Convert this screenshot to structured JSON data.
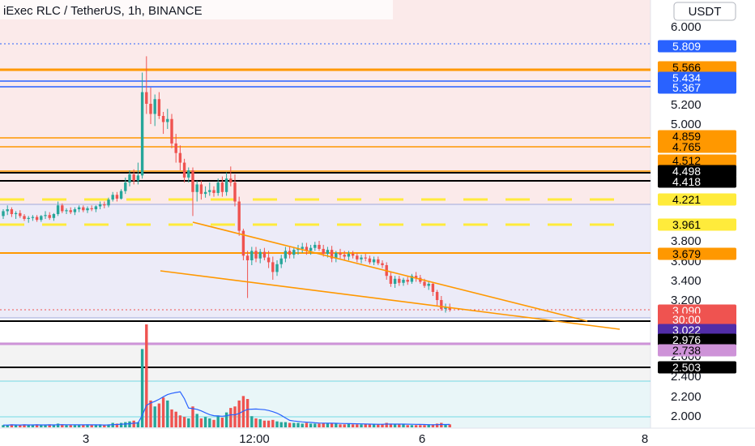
{
  "title": "iExec RLC / TetherUS, 1h, BINANCE",
  "currency": "USDT",
  "colors": {
    "up": "#26a69a",
    "down": "#ef5350",
    "orange": "#ff9800",
    "blue": "#2962ff",
    "black": "#000000",
    "yellow": "#ffeb3b",
    "purple": "#9c27b0",
    "violet": "#ce93d8",
    "volume_ma": "#2962ff"
  },
  "chart_data": {
    "type": "candlestick",
    "title": "iExec RLC / TetherUS, 1h, BINANCE",
    "y_ticks": [
      "6.000",
      "5.200",
      "5.000",
      "3.800",
      "3.600",
      "3.400",
      "3.200",
      "2.600",
      "2.400",
      "2.200",
      "2.000"
    ],
    "x_ticks": [
      "3",
      "12:00",
      "6",
      "8"
    ],
    "levels": [
      {
        "label": "5.809",
        "color": "#2962ff",
        "text_color": "#ffffff"
      },
      {
        "label": "5.566",
        "color": "#ff9800",
        "text_color": "#000000"
      },
      {
        "label": "5.434",
        "color": "#2962ff",
        "text_color": "#ffffff"
      },
      {
        "label": "5.367",
        "color": "#2962ff",
        "text_color": "#ffffff"
      },
      {
        "label": "4.859",
        "color": "#ff9800",
        "text_color": "#000000"
      },
      {
        "label": "4.765",
        "color": "#ff9800",
        "text_color": "#000000"
      },
      {
        "label": "4.512",
        "color": "#ff9800",
        "text_color": "#000000"
      },
      {
        "label": "4.498",
        "color": "#000000",
        "text_color": "#ffffff"
      },
      {
        "label": "4.418",
        "color": "#000000",
        "text_color": "#ffffff"
      },
      {
        "label": "4.221",
        "color": "#ffeb3b",
        "text_color": "#000000"
      },
      {
        "label": "3.961",
        "color": "#ffeb3b",
        "text_color": "#000000"
      },
      {
        "label": "3.679",
        "color": "#ff9800",
        "text_color": "#000000"
      },
      {
        "label": "3.090",
        "color": "#ef5350",
        "text_color": "#ffffff"
      },
      {
        "label": "30:00",
        "color": "#ef5350",
        "text_color": "#ffffff"
      },
      {
        "label": "3.022",
        "color": "#512da8",
        "text_color": "#ffffff"
      },
      {
        "label": "2.976",
        "color": "#000000",
        "text_color": "#ffffff"
      },
      {
        "label": "2.738",
        "color": "#ce93d8",
        "text_color": "#000000"
      },
      {
        "label": "2.503",
        "color": "#000000",
        "text_color": "#ffffff"
      }
    ],
    "candles": [
      [
        4.05,
        4.12,
        4.02,
        4.1
      ],
      [
        4.1,
        4.16,
        4.06,
        4.12
      ],
      [
        4.12,
        4.14,
        4.04,
        4.07
      ],
      [
        4.07,
        4.1,
        4.02,
        4.08
      ],
      [
        4.08,
        4.11,
        4.03,
        4.05
      ],
      [
        4.05,
        4.07,
        4.0,
        4.02
      ],
      [
        4.02,
        4.05,
        3.98,
        4.03
      ],
      [
        4.03,
        4.06,
        4.0,
        4.04
      ],
      [
        4.04,
        4.06,
        3.99,
        4.01
      ],
      [
        4.01,
        4.06,
        3.99,
        4.05
      ],
      [
        4.05,
        4.1,
        4.02,
        4.06
      ],
      [
        4.06,
        4.09,
        4.01,
        4.03
      ],
      [
        4.03,
        4.08,
        4.0,
        4.07
      ],
      [
        4.07,
        4.2,
        4.05,
        4.16
      ],
      [
        4.16,
        4.18,
        4.08,
        4.1
      ],
      [
        4.1,
        4.13,
        4.07,
        4.11
      ],
      [
        4.11,
        4.14,
        4.07,
        4.09
      ],
      [
        4.09,
        4.14,
        4.06,
        4.12
      ],
      [
        4.12,
        4.16,
        4.09,
        4.14
      ],
      [
        4.14,
        4.16,
        4.09,
        4.11
      ],
      [
        4.11,
        4.15,
        4.08,
        4.13
      ],
      [
        4.13,
        4.16,
        4.1,
        4.12
      ],
      [
        4.12,
        4.16,
        4.09,
        4.15
      ],
      [
        4.15,
        4.2,
        4.12,
        4.17
      ],
      [
        4.17,
        4.2,
        4.13,
        4.16
      ],
      [
        4.16,
        4.24,
        4.14,
        4.22
      ],
      [
        4.22,
        4.3,
        4.2,
        4.27
      ],
      [
        4.27,
        4.3,
        4.2,
        4.23
      ],
      [
        4.23,
        4.33,
        4.22,
        4.31
      ],
      [
        4.31,
        4.45,
        4.28,
        4.4
      ],
      [
        4.4,
        4.52,
        4.36,
        4.48
      ],
      [
        4.48,
        4.53,
        4.38,
        4.42
      ],
      [
        4.42,
        4.6,
        4.38,
        4.47
      ],
      [
        4.47,
        5.5,
        4.44,
        5.3
      ],
      [
        5.3,
        5.68,
        5.1,
        5.2
      ],
      [
        5.2,
        5.34,
        5.0,
        5.1
      ],
      [
        5.1,
        5.28,
        4.98,
        5.24
      ],
      [
        5.24,
        5.3,
        5.05,
        5.08
      ],
      [
        5.08,
        5.12,
        4.9,
        5.02
      ],
      [
        5.02,
        5.15,
        4.95,
        5.05
      ],
      [
        5.05,
        5.1,
        4.75,
        4.8
      ],
      [
        4.8,
        4.9,
        4.6,
        4.7
      ],
      [
        4.7,
        4.78,
        4.52,
        4.6
      ],
      [
        4.6,
        4.64,
        4.4,
        4.45
      ],
      [
        4.45,
        4.55,
        4.4,
        4.52
      ],
      [
        4.52,
        4.55,
        4.05,
        4.3
      ],
      [
        4.3,
        4.42,
        4.2,
        4.38
      ],
      [
        4.38,
        4.42,
        4.22,
        4.28
      ],
      [
        4.28,
        4.36,
        4.24,
        4.3
      ],
      [
        4.3,
        4.4,
        4.26,
        4.32
      ],
      [
        4.32,
        4.36,
        4.25,
        4.29
      ],
      [
        4.29,
        4.44,
        4.26,
        4.4
      ],
      [
        4.4,
        4.46,
        4.25,
        4.3
      ],
      [
        4.3,
        4.5,
        4.26,
        4.44
      ],
      [
        4.44,
        4.56,
        4.36,
        4.4
      ],
      [
        4.4,
        4.48,
        4.15,
        4.2
      ],
      [
        4.2,
        4.25,
        3.85,
        3.9
      ],
      [
        3.9,
        3.92,
        3.6,
        3.65
      ],
      [
        3.65,
        3.7,
        3.22,
        3.6
      ],
      [
        3.6,
        3.74,
        3.55,
        3.7
      ],
      [
        3.7,
        3.74,
        3.58,
        3.62
      ],
      [
        3.62,
        3.72,
        3.57,
        3.69
      ],
      [
        3.69,
        3.73,
        3.6,
        3.63
      ],
      [
        3.63,
        3.7,
        3.52,
        3.58
      ],
      [
        3.58,
        3.64,
        3.4,
        3.48
      ],
      [
        3.48,
        3.6,
        3.44,
        3.56
      ],
      [
        3.56,
        3.66,
        3.52,
        3.62
      ],
      [
        3.62,
        3.74,
        3.58,
        3.7
      ],
      [
        3.7,
        3.74,
        3.62,
        3.66
      ],
      [
        3.66,
        3.74,
        3.62,
        3.71
      ],
      [
        3.71,
        3.76,
        3.66,
        3.72
      ],
      [
        3.72,
        3.78,
        3.68,
        3.74
      ],
      [
        3.74,
        3.78,
        3.66,
        3.7
      ],
      [
        3.7,
        3.76,
        3.66,
        3.73
      ],
      [
        3.73,
        3.79,
        3.7,
        3.76
      ],
      [
        3.76,
        3.8,
        3.7,
        3.72
      ],
      [
        3.72,
        3.76,
        3.64,
        3.67
      ],
      [
        3.67,
        3.74,
        3.63,
        3.71
      ],
      [
        3.71,
        3.75,
        3.58,
        3.62
      ],
      [
        3.62,
        3.7,
        3.58,
        3.68
      ],
      [
        3.68,
        3.72,
        3.62,
        3.66
      ],
      [
        3.66,
        3.7,
        3.6,
        3.64
      ],
      [
        3.64,
        3.7,
        3.6,
        3.67
      ],
      [
        3.67,
        3.7,
        3.62,
        3.65
      ],
      [
        3.65,
        3.68,
        3.58,
        3.61
      ],
      [
        3.61,
        3.66,
        3.57,
        3.63
      ],
      [
        3.63,
        3.67,
        3.59,
        3.62
      ],
      [
        3.62,
        3.65,
        3.56,
        3.58
      ],
      [
        3.58,
        3.64,
        3.55,
        3.61
      ],
      [
        3.61,
        3.64,
        3.55,
        3.57
      ],
      [
        3.57,
        3.6,
        3.52,
        3.55
      ],
      [
        3.55,
        3.58,
        3.4,
        3.44
      ],
      [
        3.44,
        3.48,
        3.33,
        3.36
      ],
      [
        3.36,
        3.44,
        3.32,
        3.41
      ],
      [
        3.41,
        3.44,
        3.34,
        3.37
      ],
      [
        3.37,
        3.42,
        3.34,
        3.4
      ],
      [
        3.4,
        3.43,
        3.35,
        3.38
      ],
      [
        3.38,
        3.46,
        3.36,
        3.44
      ],
      [
        3.44,
        3.48,
        3.38,
        3.42
      ],
      [
        3.42,
        3.45,
        3.36,
        3.38
      ],
      [
        3.38,
        3.41,
        3.32,
        3.34
      ],
      [
        3.34,
        3.38,
        3.3,
        3.36
      ],
      [
        3.36,
        3.38,
        3.24,
        3.28
      ],
      [
        3.28,
        3.3,
        3.14,
        3.2
      ],
      [
        3.2,
        3.24,
        3.08,
        3.1
      ],
      [
        3.1,
        3.16,
        3.06,
        3.12
      ],
      [
        3.12,
        3.16,
        3.07,
        3.09
      ]
    ],
    "volume": [
      0.3,
      0.3,
      0.4,
      0.3,
      0.3,
      0.4,
      0.3,
      0.3,
      0.4,
      0.3,
      0.3,
      0.4,
      0.3,
      0.5,
      0.4,
      0.3,
      0.3,
      0.3,
      0.3,
      0.3,
      0.4,
      0.3,
      0.3,
      0.4,
      0.3,
      0.4,
      0.6,
      0.5,
      0.6,
      0.7,
      0.8,
      0.9,
      0.7,
      10.5,
      13.8,
      3.6,
      2.8,
      3.2,
      4.0,
      3.6,
      2.4,
      2.1,
      1.6,
      1.4,
      1.2,
      2.8,
      1.8,
      1.2,
      1.4,
      1.2,
      1.0,
      1.6,
      1.3,
      2.0,
      2.6,
      2.8,
      3.6,
      4.2,
      3.8,
      1.5,
      1.2,
      1.1,
      0.9,
      0.9,
      1.0,
      0.8,
      0.7,
      0.7,
      0.6,
      0.6,
      0.6,
      0.5,
      0.6,
      0.5,
      0.5,
      0.5,
      0.6,
      0.5,
      0.6,
      0.5,
      0.4,
      0.4,
      0.5,
      0.4,
      0.4,
      0.4,
      0.4,
      0.4,
      0.4,
      0.4,
      0.4,
      0.6,
      0.5,
      0.4,
      0.4,
      0.4,
      0.3,
      0.3,
      0.3,
      0.3,
      0.3,
      0.4,
      0.4,
      0.5,
      0.6,
      0.4,
      0.4
    ]
  }
}
